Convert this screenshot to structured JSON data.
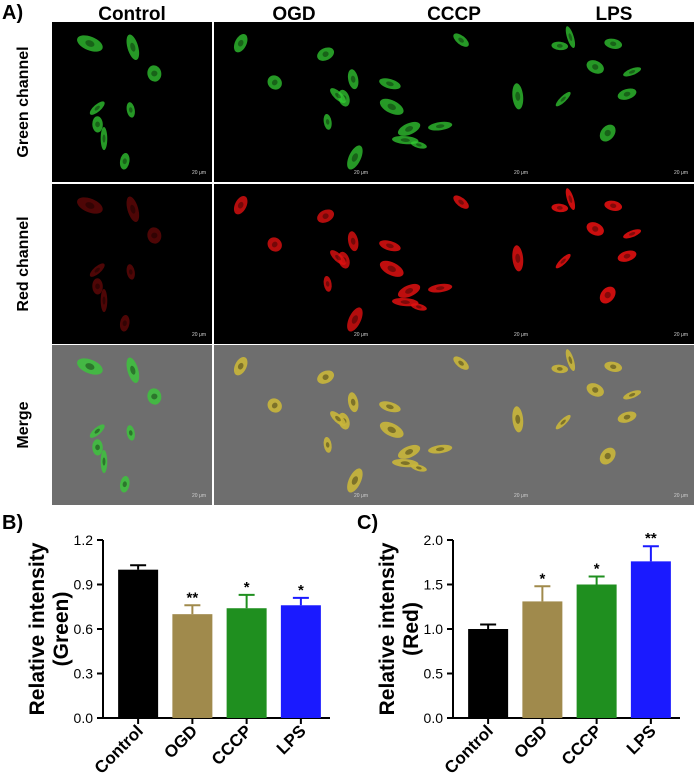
{
  "panel_a": {
    "letter": "A)",
    "columns": [
      "Control",
      "OGD",
      "CCCP",
      "LPS"
    ],
    "rows": [
      "Green channel",
      "Red channel",
      "Merge"
    ],
    "scale_label": "20 μm"
  },
  "panel_b": {
    "letter": "B)"
  },
  "panel_c": {
    "letter": "C)"
  },
  "colors": {
    "control": "#000000",
    "ogd": "#a08a4c",
    "cccp": "#1f8f1f",
    "lps": "#1a1aff",
    "green_signal": "#33cc33",
    "red_signal": "#e01010"
  },
  "chart_data": [
    {
      "type": "bar",
      "title": "",
      "categories": [
        "Control",
        "OGD",
        "CCCP",
        "LPS"
      ],
      "values": [
        1.0,
        0.7,
        0.74,
        0.76
      ],
      "errors": [
        0.03,
        0.06,
        0.09,
        0.05
      ],
      "significance": [
        "",
        "**",
        "*",
        "*"
      ],
      "ylabel_line1": "Relative intensity",
      "ylabel_line2": "(Green)",
      "ylim": [
        0,
        1.2
      ],
      "yticks": [
        "0.0",
        "0.3",
        "0.6",
        "0.9",
        "1.2"
      ],
      "ytick_values": [
        0,
        0.3,
        0.6,
        0.9,
        1.2
      ]
    },
    {
      "type": "bar",
      "title": "",
      "categories": [
        "Control",
        "OGD",
        "CCCP",
        "LPS"
      ],
      "values": [
        1.0,
        1.31,
        1.5,
        1.76
      ],
      "errors": [
        0.05,
        0.17,
        0.09,
        0.17
      ],
      "significance": [
        "",
        "*",
        "*",
        "**"
      ],
      "ylabel_line1": "Relative intensity",
      "ylabel_line2": "(Red)",
      "ylim": [
        0,
        2.0
      ],
      "yticks": [
        "0.0",
        "0.5",
        "1.0",
        "1.5",
        "2.0"
      ],
      "ytick_values": [
        0,
        0.5,
        1.0,
        1.5,
        2.0
      ]
    }
  ]
}
